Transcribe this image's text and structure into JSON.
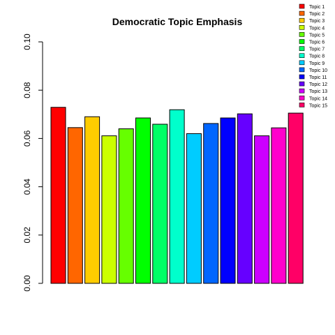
{
  "chart_data": {
    "type": "bar",
    "title": "Democratic Topic Emphasis",
    "xlabel": "",
    "ylabel": "",
    "ylim": [
      0,
      0.1
    ],
    "yticks": [
      0,
      0.02,
      0.04,
      0.06,
      0.08,
      0.1
    ],
    "ytick_labels": [
      "0.00",
      "0.02",
      "0.04",
      "0.06",
      "0.08",
      "0.10"
    ],
    "grid": false,
    "legend_position": "top-right",
    "categories": [
      "Topic 1",
      "Topic 2",
      "Topic 3",
      "Topic 4",
      "Topic 5",
      "Topic 6",
      "Topic 7",
      "Topic 8",
      "Topic 9",
      "Topic 10",
      "Topic 11",
      "Topic 12",
      "Topic 13",
      "Topic 14",
      "Topic 15"
    ],
    "values": [
      0.0729,
      0.0645,
      0.069,
      0.0611,
      0.064,
      0.0685,
      0.0659,
      0.0719,
      0.062,
      0.0662,
      0.0685,
      0.0702,
      0.0611,
      0.0644,
      0.0705
    ],
    "colors": [
      "#FF0000",
      "#FF6600",
      "#FFCC00",
      "#CCFF00",
      "#66FF00",
      "#00FF00",
      "#00FF66",
      "#00FFCC",
      "#00CCFF",
      "#0066FF",
      "#0000FF",
      "#6600FF",
      "#CC00FF",
      "#FF00CC",
      "#FF0066"
    ]
  }
}
